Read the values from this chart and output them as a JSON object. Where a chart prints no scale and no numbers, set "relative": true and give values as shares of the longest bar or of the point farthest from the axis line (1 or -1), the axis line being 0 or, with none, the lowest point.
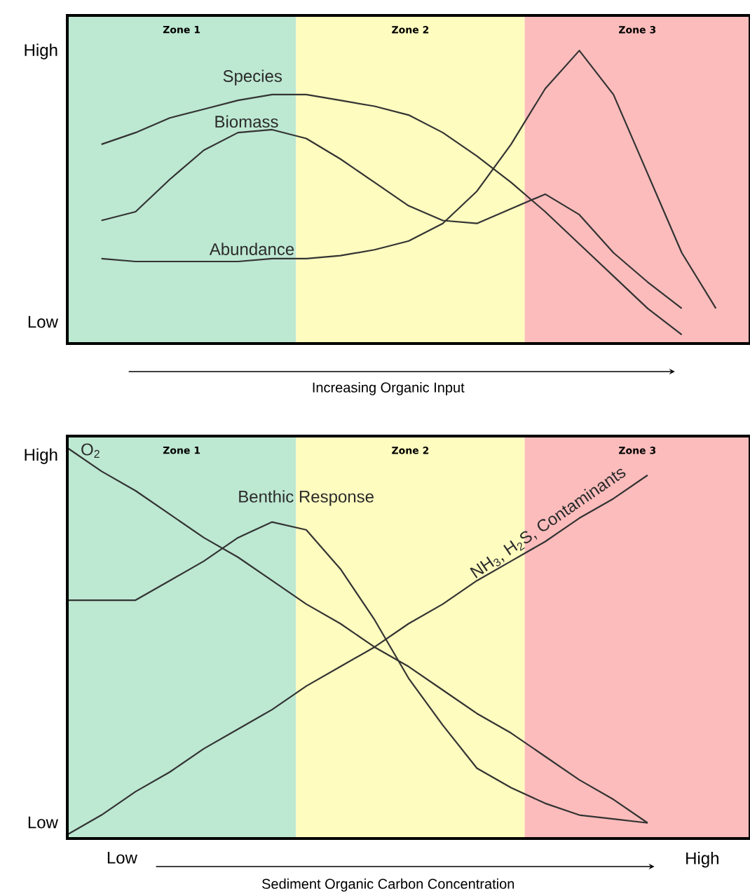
{
  "chart_data": [
    {
      "type": "line",
      "relative": true,
      "xlabel": "Increasing Organic Input",
      "annotations": [
        "Zone 1",
        "Zone 2",
        "Zone 3",
        "High",
        "Low"
      ],
      "categories": [
        null,
        null,
        null,
        null,
        null,
        null,
        null,
        null,
        null,
        null,
        null,
        null,
        null,
        null,
        null,
        null,
        null,
        null,
        null,
        null,
        null
      ],
      "series": [
        {
          "name": "Species",
          "color": "#333333",
          "values": [
            null,
            0.68,
            0.72,
            0.77,
            0.8,
            0.83,
            0.85,
            0.85,
            0.83,
            0.81,
            0.78,
            0.72,
            0.64,
            0.55,
            0.45,
            0.34,
            0.23,
            0.12,
            0.03,
            null,
            null
          ]
        },
        {
          "name": "Biomass",
          "color": "#333333",
          "values": [
            null,
            0.42,
            0.45,
            0.56,
            0.66,
            0.72,
            0.73,
            0.7,
            0.63,
            0.55,
            0.47,
            0.42,
            0.41,
            0.46,
            0.51,
            0.44,
            0.31,
            0.21,
            0.12,
            null,
            null
          ]
        },
        {
          "name": "Abundance",
          "color": "#333333",
          "values": [
            null,
            0.29,
            0.28,
            0.28,
            0.28,
            0.28,
            0.29,
            0.29,
            0.3,
            0.32,
            0.35,
            0.41,
            0.52,
            0.68,
            0.87,
            1.0,
            0.85,
            0.58,
            0.31,
            0.12,
            null
          ]
        }
      ]
    },
    {
      "type": "line",
      "relative": true,
      "xlabel": "Sediment Organic Carbon Concentration",
      "annotations": [
        "Zone 1",
        "Zone 2",
        "Zone 3",
        "High",
        "Low",
        "Low",
        "High"
      ],
      "categories": [
        null,
        null,
        null,
        null,
        null,
        null,
        null,
        null,
        null,
        null,
        null,
        null,
        null,
        null,
        null,
        null,
        null,
        null,
        null,
        null,
        null
      ],
      "series": [
        {
          "name": "O$_{2}$",
          "color": "#333333",
          "values": [
            1.0,
            0.94,
            0.89,
            0.83,
            0.77,
            0.72,
            0.66,
            0.6,
            0.55,
            0.49,
            0.44,
            0.38,
            0.32,
            0.27,
            0.21,
            0.15,
            0.1,
            0.04,
            null,
            null,
            null
          ]
        },
        {
          "name": "Benthic Response",
          "color": "#333333",
          "values": [
            0.61,
            0.61,
            0.61,
            0.66,
            0.71,
            0.77,
            0.81,
            0.79,
            0.69,
            0.56,
            0.41,
            0.29,
            0.18,
            0.13,
            0.09,
            0.06,
            0.05,
            0.04,
            null,
            null,
            null
          ]
        },
        {
          "name": "NH$_{3}$, H$_{2}$S, Contaminants",
          "color": "#333333",
          "values": [
            0.01,
            0.06,
            0.12,
            0.17,
            0.23,
            0.28,
            0.33,
            0.39,
            0.44,
            0.49,
            0.55,
            0.6,
            0.66,
            0.71,
            0.76,
            0.82,
            0.87,
            0.93,
            null,
            null,
            null
          ]
        }
      ]
    }
  ]
}
